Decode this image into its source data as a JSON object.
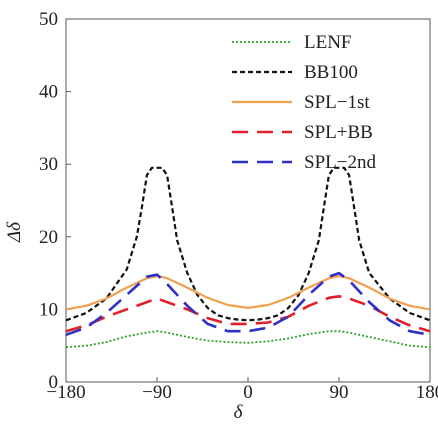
{
  "chart_data": {
    "type": "line",
    "xlabel": "δ",
    "ylabel": "Δδ",
    "xlim": [
      -180,
      180
    ],
    "ylim": [
      0,
      50
    ],
    "xticks": [
      "−180",
      "−90",
      "0",
      "90",
      "180"
    ],
    "yticks": [
      "0",
      "10",
      "20",
      "30",
      "40",
      "50"
    ],
    "grid": false,
    "legend_position": "top-right",
    "series": [
      {
        "name": "LENF",
        "color": "#2aa02a",
        "dash": "dotted",
        "x": [
          -180,
          -160,
          -140,
          -120,
          -100,
          -90,
          -80,
          -60,
          -40,
          -20,
          0,
          20,
          40,
          60,
          80,
          90,
          100,
          120,
          140,
          160,
          180
        ],
        "y": [
          4.8,
          5.0,
          5.5,
          6.3,
          6.8,
          7.0,
          6.8,
          6.2,
          5.7,
          5.5,
          5.4,
          5.6,
          6.0,
          6.6,
          7.0,
          7.0,
          6.8,
          6.2,
          5.6,
          5.0,
          4.8
        ]
      },
      {
        "name": "BB100",
        "color": "#111111",
        "dash": "dashed",
        "x": [
          -180,
          -160,
          -140,
          -120,
          -110,
          -105,
          -100,
          -95,
          -90,
          -85,
          -80,
          -75,
          -70,
          -60,
          -50,
          -40,
          -30,
          -20,
          -10,
          0,
          10,
          20,
          30,
          40,
          50,
          60,
          70,
          75,
          80,
          85,
          90,
          95,
          100,
          105,
          110,
          120,
          140,
          160,
          180
        ],
        "y": [
          8.5,
          9.5,
          11.5,
          15.5,
          20.0,
          24.0,
          28.5,
          29.5,
          29.5,
          29.5,
          28.5,
          24.0,
          19.5,
          15.0,
          12.0,
          10.2,
          9.2,
          8.8,
          8.6,
          8.5,
          8.6,
          8.8,
          9.2,
          10.2,
          12.0,
          15.0,
          19.5,
          24.0,
          28.5,
          29.5,
          29.5,
          29.5,
          28.5,
          24.0,
          19.5,
          15.0,
          11.5,
          9.5,
          8.5
        ]
      },
      {
        "name": "SPL−1st",
        "color": "#f0a050",
        "dash": "solid",
        "x": [
          -180,
          -160,
          -140,
          -120,
          -100,
          -90,
          -80,
          -60,
          -40,
          -20,
          0,
          20,
          40,
          60,
          80,
          90,
          100,
          120,
          140,
          160,
          180
        ],
        "y": [
          10.0,
          10.5,
          11.5,
          13.0,
          14.3,
          14.6,
          14.3,
          13.0,
          11.6,
          10.6,
          10.2,
          10.6,
          11.6,
          13.0,
          14.3,
          14.6,
          14.3,
          13.0,
          11.5,
          10.5,
          10.0
        ]
      },
      {
        "name": "SPL+BB",
        "color": "#e0202a",
        "dash": "longdash",
        "x": [
          -180,
          -160,
          -140,
          -120,
          -100,
          -90,
          -80,
          -60,
          -40,
          -20,
          0,
          20,
          40,
          60,
          80,
          90,
          100,
          120,
          140,
          160,
          180
        ],
        "y": [
          7.0,
          7.8,
          9.0,
          10.0,
          11.0,
          11.5,
          11.0,
          10.0,
          8.8,
          8.0,
          8.0,
          8.2,
          9.0,
          10.5,
          11.6,
          11.8,
          11.5,
          10.5,
          9.0,
          7.8,
          7.0
        ]
      },
      {
        "name": "SPL−2nd",
        "color": "#3030c8",
        "dash": "longdash",
        "x": [
          -180,
          -160,
          -140,
          -120,
          -100,
          -90,
          -80,
          -60,
          -40,
          -20,
          0,
          20,
          40,
          60,
          80,
          90,
          100,
          120,
          140,
          160,
          180
        ],
        "y": [
          6.5,
          7.5,
          9.5,
          12.0,
          14.5,
          14.8,
          13.5,
          10.5,
          8.0,
          7.0,
          7.0,
          7.5,
          9.0,
          12.0,
          14.5,
          15.0,
          14.0,
          11.0,
          8.5,
          7.0,
          6.5
        ]
      }
    ]
  }
}
